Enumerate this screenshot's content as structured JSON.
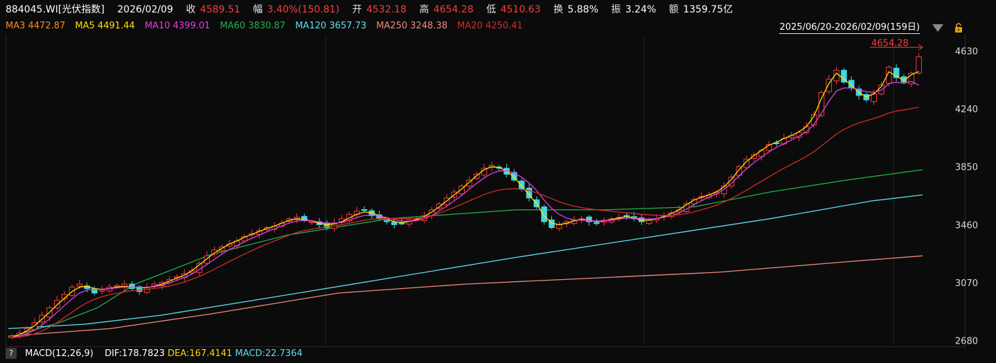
{
  "header": {
    "code": "884045.WI[光伏指数]",
    "date": "2026/02/09",
    "close_label": "收",
    "close": "4589.51",
    "change_label": "幅",
    "change": "3.40%(150.81)",
    "open_label": "开",
    "open": "4532.18",
    "high_label": "高",
    "high": "4654.28",
    "low_label": "低",
    "low": "4510.63",
    "turnover_label": "换",
    "turnover": "5.88%",
    "amplitude_label": "振",
    "amplitude": "3.24%",
    "amount_label": "额",
    "amount": "1359.75亿"
  },
  "ma_legend": [
    {
      "label": "MA3 4472.87",
      "color": "#ff8a1f"
    },
    {
      "label": "MA5 4491.44",
      "color": "#ffe000"
    },
    {
      "label": "MA10 4399.01",
      "color": "#e43ce4"
    },
    {
      "label": "MA60 3830.87",
      "color": "#23b14d"
    },
    {
      "label": "MA120 3657.73",
      "color": "#5ee0f0"
    },
    {
      "label": "MA250 3248.38",
      "color": "#f08a80"
    },
    {
      "label": "MA20 4250.41",
      "color": "#d42a2a"
    }
  ],
  "range_label": "2025/06/20-2026/02/09(159日)",
  "footer": {
    "help_icon": "?",
    "macd": "MACD(12,26,9)",
    "dif": "DIF:178.7823",
    "dea": "DEA:167.4141",
    "macd_val": "MACD:22.7364"
  },
  "colors": {
    "up": "#ff3b3b",
    "down": "#41d6e0",
    "background": "#0b0b0b"
  },
  "chart_data": {
    "type": "candlestick",
    "y_ticks": [
      4630,
      4240,
      3850,
      3460,
      3070,
      2680
    ],
    "ylim": [
      2650,
      4730
    ],
    "high_marker": "4654.28",
    "closes": [
      2710,
      2730,
      2760,
      2800,
      2850,
      2900,
      2950,
      2990,
      3040,
      3060,
      3030,
      3000,
      3020,
      3040,
      3050,
      3060,
      3030,
      3010,
      3040,
      3060,
      3070,
      3090,
      3110,
      3130,
      3150,
      3200,
      3250,
      3290,
      3310,
      3330,
      3350,
      3380,
      3400,
      3420,
      3440,
      3450,
      3470,
      3500,
      3510,
      3490,
      3480,
      3460,
      3440,
      3470,
      3500,
      3530,
      3550,
      3560,
      3520,
      3500,
      3480,
      3460,
      3470,
      3490,
      3500,
      3520,
      3560,
      3600,
      3640,
      3680,
      3720,
      3760,
      3800,
      3840,
      3860,
      3840,
      3800,
      3760,
      3700,
      3640,
      3580,
      3480,
      3440,
      3460,
      3480,
      3490,
      3500,
      3480,
      3470,
      3490,
      3500,
      3510,
      3520,
      3500,
      3480,
      3490,
      3500,
      3520,
      3540,
      3560,
      3600,
      3630,
      3650,
      3660,
      3680,
      3720,
      3780,
      3850,
      3900,
      3930,
      3960,
      4000,
      4010,
      4040,
      4060,
      4080,
      4120,
      4200,
      4350,
      4440,
      4500,
      4420,
      4380,
      4330,
      4300,
      4340,
      4400,
      4520,
      4450,
      4420,
      4480,
      4590
    ],
    "ma": {
      "MA5": [
        2700,
        2720,
        2745,
        2780,
        2825,
        2870,
        2920,
        2965,
        3010,
        3040,
        3045,
        3030,
        3025,
        3030,
        3040,
        3045,
        3040,
        3035,
        3035,
        3045,
        3060,
        3080,
        3100,
        3120,
        3150,
        3190,
        3230,
        3270,
        3300,
        3330,
        3350,
        3375,
        3395,
        3415,
        3435,
        3450,
        3470,
        3490,
        3500,
        3495,
        3485,
        3470,
        3460,
        3465,
        3480,
        3505,
        3530,
        3545,
        3540,
        3520,
        3500,
        3480,
        3475,
        3480,
        3495,
        3515,
        3545,
        3580,
        3620,
        3660,
        3700,
        3745,
        3790,
        3830,
        3850,
        3845,
        3820,
        3780,
        3720,
        3660,
        3600,
        3520,
        3470,
        3460,
        3470,
        3485,
        3495,
        3490,
        3480,
        3485,
        3495,
        3505,
        3515,
        3505,
        3490,
        3490,
        3500,
        3515,
        3535,
        3560,
        3595,
        3625,
        3645,
        3660,
        3680,
        3715,
        3765,
        3830,
        3885,
        3925,
        3960,
        3995,
        4015,
        4040,
        4060,
        4085,
        4120,
        4190,
        4310,
        4410,
        4480,
        4440,
        4400,
        4350,
        4320,
        4340,
        4390,
        4490,
        4460,
        4430,
        4470,
        4491
      ],
      "MA10": [
        2700,
        2710,
        2725,
        2750,
        2785,
        2825,
        2870,
        2915,
        2960,
        3000,
        3020,
        3025,
        3025,
        3028,
        3035,
        3040,
        3040,
        3038,
        3038,
        3042,
        3052,
        3068,
        3085,
        3105,
        3128,
        3158,
        3192,
        3228,
        3262,
        3292,
        3318,
        3345,
        3368,
        3390,
        3412,
        3432,
        3452,
        3472,
        3485,
        3488,
        3486,
        3478,
        3470,
        3470,
        3475,
        3490,
        3508,
        3522,
        3525,
        3518,
        3508,
        3495,
        3485,
        3482,
        3488,
        3500,
        3522,
        3552,
        3585,
        3620,
        3658,
        3698,
        3738,
        3775,
        3805,
        3822,
        3822,
        3808,
        3780,
        3740,
        3690,
        3625,
        3570,
        3530,
        3505,
        3492,
        3490,
        3488,
        3485,
        3486,
        3490,
        3497,
        3505,
        3505,
        3500,
        3497,
        3500,
        3510,
        3522,
        3538,
        3565,
        3595,
        3622,
        3645,
        3668,
        3698,
        3738,
        3788,
        3835,
        3878,
        3915,
        3950,
        3980,
        4005,
        4030,
        4055,
        4085,
        4135,
        4210,
        4290,
        4360,
        4380,
        4380,
        4370,
        4355,
        4350,
        4365,
        4410,
        4420,
        4410,
        4425,
        4399
      ],
      "MA20": [
        2700,
        2705,
        2712,
        2725,
        2745,
        2770,
        2800,
        2835,
        2870,
        2905,
        2935,
        2958,
        2975,
        2988,
        2998,
        3008,
        3015,
        3020,
        3025,
        3030,
        3038,
        3048,
        3060,
        3074,
        3092,
        3112,
        3135,
        3160,
        3186,
        3212,
        3238,
        3262,
        3285,
        3308,
        3330,
        3350,
        3370,
        3390,
        3408,
        3420,
        3430,
        3438,
        3445,
        3452,
        3460,
        3470,
        3480,
        3490,
        3497,
        3500,
        3502,
        3502,
        3500,
        3500,
        3503,
        3510,
        3522,
        3538,
        3556,
        3576,
        3598,
        3620,
        3642,
        3663,
        3680,
        3693,
        3700,
        3702,
        3698,
        3690,
        3675,
        3655,
        3635,
        3615,
        3598,
        3585,
        3575,
        3567,
        3560,
        3555,
        3550,
        3545,
        3540,
        3535,
        3530,
        3526,
        3523,
        3522,
        3523,
        3527,
        3535,
        3546,
        3560,
        3575,
        3592,
        3612,
        3636,
        3663,
        3692,
        3722,
        3752,
        3782,
        3812,
        3840,
        3866,
        3892,
        3920,
        3952,
        3990,
        4030,
        4070,
        4100,
        4125,
        4145,
        4160,
        4175,
        4192,
        4212,
        4225,
        4232,
        4242,
        4250
      ]
    },
    "ma_smooth": {
      "MA60": [
        [
          0,
          2700
        ],
        [
          40,
          2800
        ],
        [
          70,
          2900
        ],
        [
          100,
          3060
        ],
        [
          160,
          3260
        ],
        [
          220,
          3390
        ],
        [
          300,
          3500
        ],
        [
          400,
          3560
        ],
        [
          470,
          3560
        ],
        [
          540,
          3580
        ],
        [
          600,
          3680
        ],
        [
          660,
          3760
        ],
        [
          720,
          3830
        ]
      ],
      "MA120": [
        [
          0,
          2760
        ],
        [
          60,
          2790
        ],
        [
          120,
          2850
        ],
        [
          200,
          2960
        ],
        [
          300,
          3100
        ],
        [
          400,
          3240
        ],
        [
          500,
          3370
        ],
        [
          600,
          3500
        ],
        [
          680,
          3620
        ],
        [
          720,
          3660
        ]
      ],
      "MA250": [
        [
          0,
          2710
        ],
        [
          80,
          2760
        ],
        [
          160,
          2860
        ],
        [
          260,
          3000
        ],
        [
          360,
          3060
        ],
        [
          460,
          3100
        ],
        [
          560,
          3140
        ],
        [
          660,
          3210
        ],
        [
          720,
          3250
        ]
      ]
    }
  }
}
